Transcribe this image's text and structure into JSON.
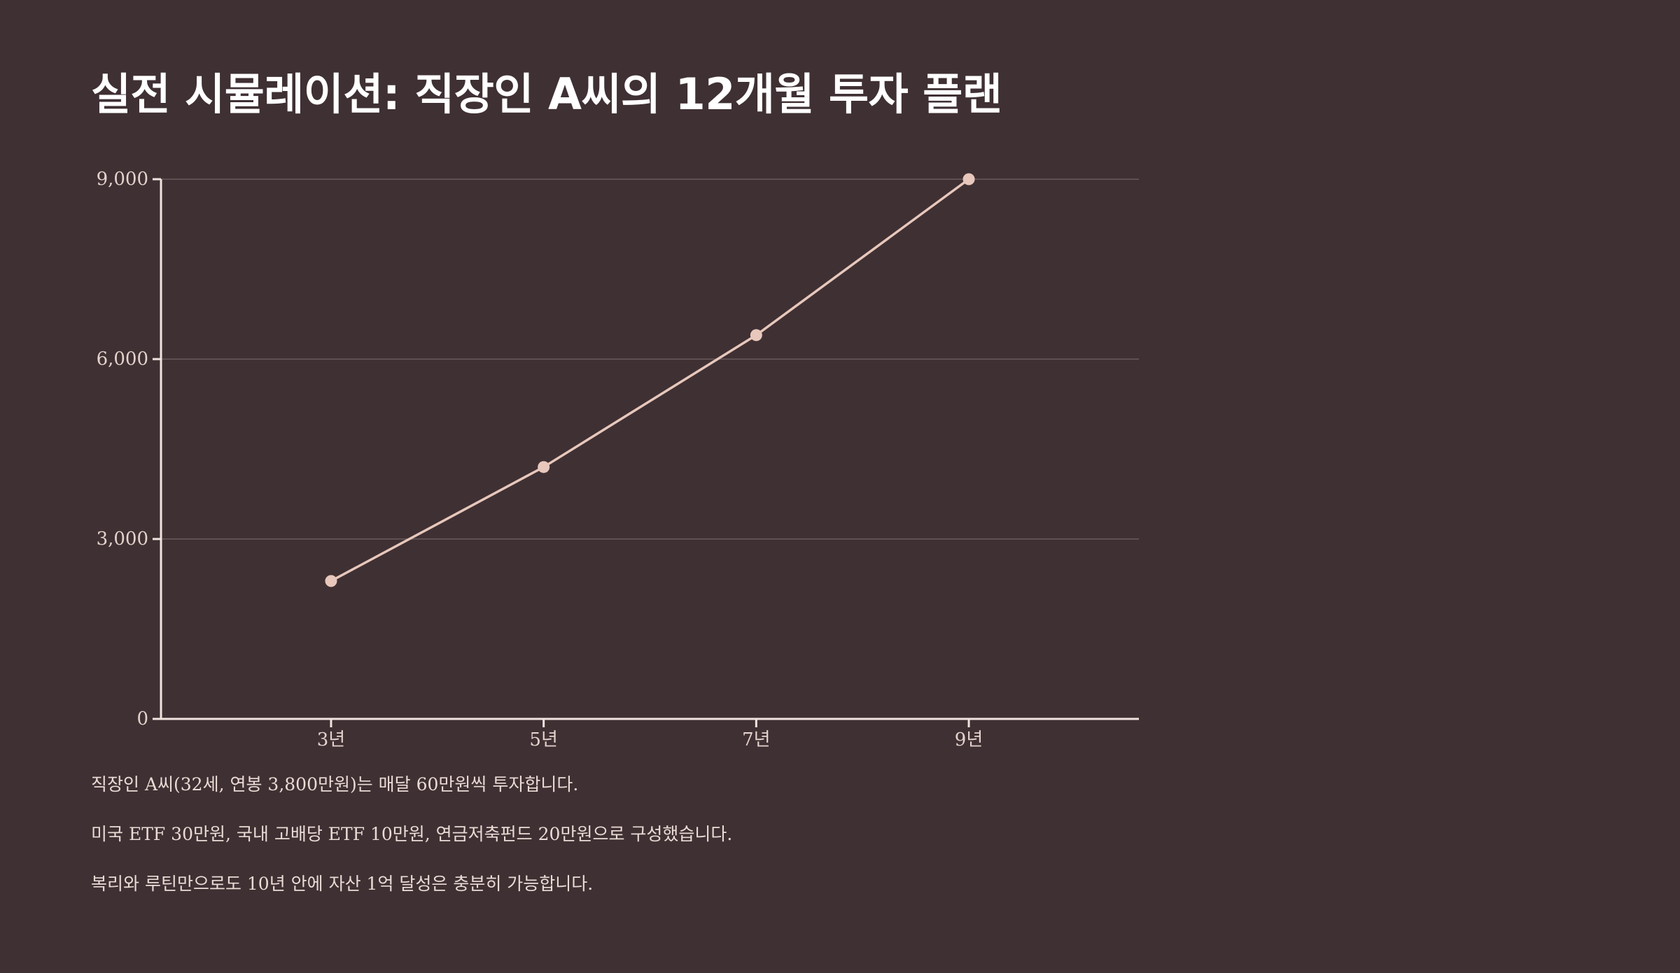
{
  "title": "실전 시뮬레이션: 직장인 A씨의 12개월 투자 플랜",
  "colors": {
    "background": "#3f3033",
    "line": "#e8c8bc",
    "axis": "#f0e4e0",
    "grid": "#6a5a5c",
    "text": "#eadbd6"
  },
  "chart_data": {
    "type": "line",
    "title": "",
    "xlabel": "",
    "ylabel": "",
    "x": [
      "3년",
      "5년",
      "7년",
      "9년"
    ],
    "series": [
      {
        "values": [
          2300,
          4200,
          6400,
          9000
        ]
      }
    ],
    "xlim": [
      1.4,
      10.6
    ],
    "ylim": [
      0,
      9000
    ],
    "yticks": [
      0,
      3000,
      6000,
      9000
    ],
    "ytick_labels": [
      "0",
      "3,000",
      "6,000",
      "9,000"
    ],
    "xtick_values": [
      3,
      5,
      7,
      9
    ],
    "grid": "horizontal",
    "legend": "none"
  },
  "notes": [
    "직장인 A씨(32세, 연봉 3,800만원)는 매달 60만원씩 투자합니다.",
    "미국 ETF 30만원, 국내 고배당 ETF 10만원, 연금저축펀드 20만원으로 구성했습니다.",
    "복리와 루틴만으로도 10년 안에 자산 1억 달성은 충분히 가능합니다."
  ]
}
